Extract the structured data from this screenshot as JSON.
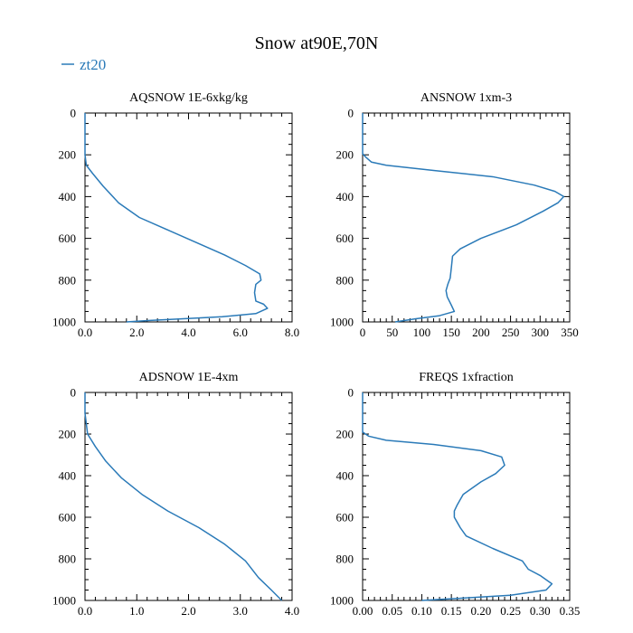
{
  "title": "Snow at90E,70N",
  "legend": {
    "label": "zt20",
    "color": "#2a7ab8",
    "placement": "top-left"
  },
  "chart_data": [
    {
      "type": "line",
      "title": "AQSNOW  1E-6xkg/kg",
      "xlim": [
        0,
        8
      ],
      "ylim": [
        1000,
        0
      ],
      "xticks": [
        0,
        2,
        4,
        6,
        8
      ],
      "xticklabels": [
        "0.0",
        "2.0",
        "4.0",
        "6.0",
        "8.0"
      ],
      "yticks": [
        0,
        200,
        400,
        600,
        800,
        1000
      ],
      "yticklabels": [
        "0",
        "200",
        "400",
        "600",
        "800",
        "1000"
      ],
      "series": [
        {
          "name": "zt20",
          "x": [
            0,
            0,
            0,
            0.05,
            0.3,
            0.7,
            1.3,
            2.1,
            3.2,
            4.3,
            5.4,
            6.2,
            6.75,
            6.8,
            6.6,
            6.55,
            6.6,
            6.9,
            7.05,
            6.6,
            5.3,
            3.8,
            2.5,
            1.6
          ],
          "y": [
            0,
            100,
            200,
            250,
            290,
            350,
            430,
            500,
            560,
            620,
            680,
            730,
            770,
            800,
            820,
            860,
            900,
            915,
            935,
            960,
            975,
            985,
            993,
            1000
          ]
        }
      ]
    },
    {
      "type": "line",
      "title": "ANSNOW  1xm-3",
      "xlim": [
        0,
        350
      ],
      "ylim": [
        1000,
        0
      ],
      "xticks": [
        0,
        50,
        100,
        150,
        200,
        250,
        300,
        350
      ],
      "xticklabels": [
        "0",
        "50",
        "100",
        "150",
        "200",
        "250",
        "300",
        "350"
      ],
      "yticks": [
        0,
        200,
        400,
        600,
        800,
        1000
      ],
      "yticklabels": [
        "0",
        "200",
        "400",
        "600",
        "800",
        "1000"
      ],
      "series": [
        {
          "name": "zt20",
          "x": [
            0,
            0,
            0,
            5,
            15,
            40,
            120,
            220,
            290,
            325,
            340,
            330,
            305,
            260,
            200,
            165,
            152,
            150,
            148,
            144,
            141,
            143,
            150,
            155,
            130,
            90,
            55
          ],
          "y": [
            0,
            100,
            195,
            210,
            235,
            250,
            275,
            305,
            345,
            375,
            400,
            430,
            470,
            535,
            600,
            650,
            685,
            740,
            790,
            820,
            850,
            880,
            920,
            950,
            970,
            985,
            1000
          ]
        }
      ]
    },
    {
      "type": "line",
      "title": "ADSNOW  1E-4xm",
      "xlim": [
        0,
        4
      ],
      "ylim": [
        1000,
        0
      ],
      "xticks": [
        0,
        1,
        2,
        3,
        4
      ],
      "xticklabels": [
        "0.0",
        "1.0",
        "2.0",
        "3.0",
        "4.0"
      ],
      "yticks": [
        0,
        200,
        400,
        600,
        800,
        1000
      ],
      "yticklabels": [
        "0",
        "200",
        "400",
        "600",
        "800",
        "1000"
      ],
      "series": [
        {
          "name": "zt20",
          "x": [
            0,
            0,
            0.05,
            0.2,
            0.4,
            0.7,
            1.1,
            1.6,
            2.2,
            2.7,
            3.1,
            3.35,
            3.6,
            3.8
          ],
          "y": [
            0,
            100,
            200,
            260,
            330,
            410,
            490,
            570,
            650,
            730,
            810,
            890,
            950,
            1000
          ]
        }
      ]
    },
    {
      "type": "line",
      "title": "FREQS  1xfraction",
      "xlim": [
        0,
        0.35
      ],
      "ylim": [
        1000,
        0
      ],
      "xticks": [
        0,
        0.05,
        0.1,
        0.15,
        0.2,
        0.25,
        0.3,
        0.35
      ],
      "xticklabels": [
        "0.00",
        "0.05",
        "0.10",
        "0.15",
        "0.20",
        "0.25",
        "0.30",
        "0.35"
      ],
      "yticks": [
        0,
        200,
        400,
        600,
        800,
        1000
      ],
      "yticklabels": [
        "0",
        "200",
        "400",
        "600",
        "800",
        "1000"
      ],
      "series": [
        {
          "name": "zt20",
          "x": [
            0,
            0,
            0,
            0.01,
            0.04,
            0.12,
            0.2,
            0.235,
            0.24,
            0.225,
            0.2,
            0.17,
            0.16,
            0.155,
            0.155,
            0.165,
            0.175,
            0.22,
            0.27,
            0.28,
            0.3,
            0.32,
            0.31,
            0.25,
            0.15,
            0.1
          ],
          "y": [
            0,
            100,
            190,
            210,
            230,
            250,
            280,
            310,
            350,
            390,
            430,
            490,
            540,
            570,
            600,
            650,
            690,
            750,
            810,
            850,
            880,
            920,
            950,
            975,
            992,
            1000
          ]
        }
      ]
    }
  ]
}
